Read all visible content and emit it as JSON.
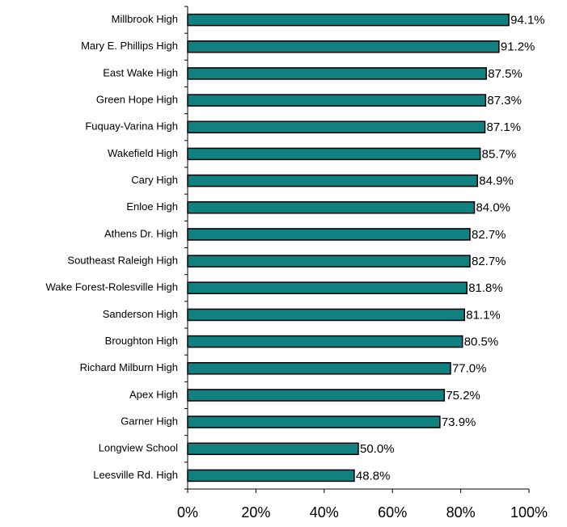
{
  "chart_data": {
    "type": "barh",
    "categories": [
      "Millbrook High",
      "Mary E. Phillips High",
      "East Wake High",
      "Green Hope High",
      "Fuquay-Varina High",
      "Wakefield High",
      "Cary High",
      "Enloe High",
      "Athens Dr. High",
      "Southeast Raleigh High",
      "Wake Forest-Rolesville High",
      "Sanderson High",
      "Broughton High",
      "Richard Milburn High",
      "Apex High",
      "Garner High",
      "Longview School",
      "Leesville Rd. High"
    ],
    "values": [
      94.1,
      91.2,
      87.5,
      87.3,
      87.1,
      85.7,
      84.9,
      84.0,
      82.7,
      82.7,
      81.8,
      81.1,
      80.5,
      77.0,
      75.2,
      73.9,
      50.0,
      48.8
    ],
    "value_labels": [
      "94.1%",
      "91.2%",
      "87.5%",
      "87.3%",
      "87.1%",
      "85.7%",
      "84.9%",
      "84.0%",
      "82.7%",
      "82.7%",
      "81.8%",
      "81.1%",
      "80.5%",
      "77.0%",
      "75.2%",
      "73.9%",
      "50.0%",
      "48.8%"
    ],
    "color": "#118080",
    "xlim": [
      0,
      100
    ],
    "xticks": [
      {
        "value": 0,
        "label": "0%"
      },
      {
        "value": 20,
        "label": "20%"
      },
      {
        "value": 40,
        "label": "40%"
      },
      {
        "value": 60,
        "label": "60%"
      },
      {
        "value": 80,
        "label": "80%"
      },
      {
        "value": 100,
        "label": "100%"
      }
    ],
    "grid": false
  }
}
